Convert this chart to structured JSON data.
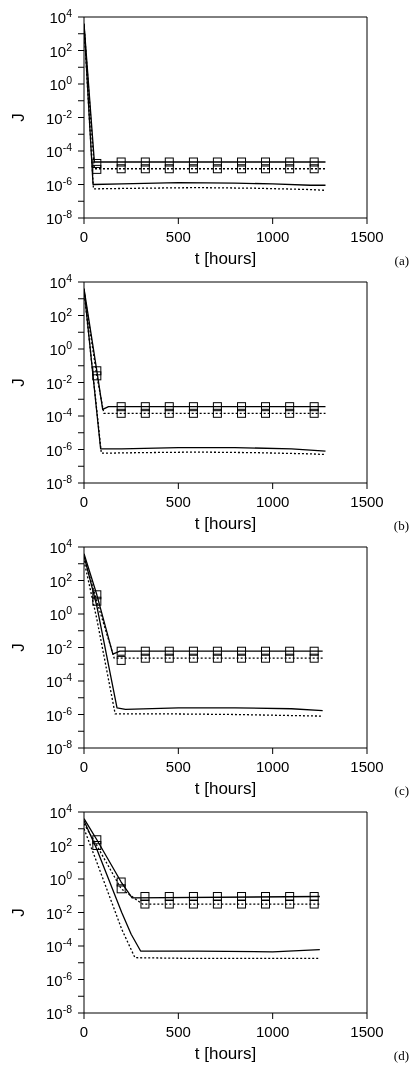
{
  "chart_data": [
    {
      "type": "line",
      "xlabel": "t [hours]",
      "ylabel": "J",
      "annotations": [
        "(a)"
      ],
      "log": "y",
      "xlim": [
        0,
        1500
      ],
      "xticks": [
        0,
        500,
        1000,
        1500
      ],
      "ylim": [
        1e-08,
        10000
      ],
      "yticks": [
        {
          "value": 10000,
          "label": "10$^{4}$"
        },
        {
          "value": 1000,
          "label": null
        },
        {
          "value": 100,
          "label": "10$^{2}$"
        },
        {
          "value": 10,
          "label": null
        },
        {
          "value": 1,
          "label": "10$^{0}$"
        },
        {
          "value": 0.1,
          "label": null
        },
        {
          "value": 0.01,
          "label": "10$^{-2}$"
        },
        {
          "value": 0.001,
          "label": null
        },
        {
          "value": 0.0001,
          "label": "10$^{-4}$"
        },
        {
          "value": 1e-05,
          "label": null
        },
        {
          "value": 1e-06,
          "label": "10$^{-6}$"
        },
        {
          "value": 1e-07,
          "label": null
        },
        {
          "value": 1e-08,
          "label": "10$^{-8}$"
        }
      ],
      "series": [
        {
          "type": "line",
          "color": "#000000",
          "line_style": "solid",
          "marker": "none",
          "x": [
            0,
            55,
            1280
          ],
          "values": [
            4000,
            2.2e-05,
            2.2e-05
          ]
        },
        {
          "type": "line",
          "color": "#000000",
          "line_style": "dotted",
          "marker": "none",
          "x": [
            0,
            55,
            1280
          ],
          "values": [
            3000,
            8.7e-06,
            8.7e-06
          ]
        },
        {
          "type": "line",
          "color": "#000000",
          "line_style": "solid",
          "marker": "none",
          "x": [
            0,
            48,
            200,
            500,
            800,
            1000,
            1200,
            1280
          ],
          "values": [
            4000,
            1e-06,
            1.1e-06,
            1.3e-06,
            1.2e-06,
            1.1e-06,
            9e-07,
            9e-07
          ]
        },
        {
          "type": "line",
          "color": "#000000",
          "line_style": "dotted",
          "marker": "none",
          "x": [
            0,
            50,
            300,
            600,
            900,
            1200,
            1280
          ],
          "values": [
            3000,
            5.5e-07,
            6e-07,
            6.5e-07,
            6e-07,
            5e-07,
            4.5e-07
          ]
        },
        {
          "type": "scatter",
          "color": "#000000",
          "marker": "square",
          "x": [
            68,
            197,
            325,
            452,
            580,
            707,
            835,
            962,
            1090,
            1220
          ],
          "values": [
            1.8e-05,
            2.2e-05,
            2.2e-05,
            2.2e-05,
            2.2e-05,
            2.2e-05,
            2.2e-05,
            2.2e-05,
            2.2e-05,
            2.2e-05
          ]
        },
        {
          "type": "scatter",
          "color": "#000000",
          "marker": "square",
          "x": [
            68,
            197,
            325,
            452,
            580,
            707,
            835,
            962,
            1090,
            1220
          ],
          "values": [
            8e-06,
            8.7e-06,
            8.7e-06,
            8.7e-06,
            8.7e-06,
            8.7e-06,
            8.7e-06,
            8.7e-06,
            8.7e-06,
            8.7e-06
          ]
        }
      ]
    },
    {
      "type": "line",
      "xlabel": "t [hours]",
      "ylabel": "J",
      "annotations": [
        "(b)"
      ],
      "log": "y",
      "xlim": [
        0,
        1500
      ],
      "xticks": [
        0,
        500,
        1000,
        1500
      ],
      "ylim": [
        1e-08,
        10000
      ],
      "yticks": [
        {
          "value": 10000,
          "label": "10$^{4}$"
        },
        {
          "value": 1000,
          "label": null
        },
        {
          "value": 100,
          "label": "10$^{2}$"
        },
        {
          "value": 10,
          "label": null
        },
        {
          "value": 1,
          "label": "10$^{0}$"
        },
        {
          "value": 0.1,
          "label": null
        },
        {
          "value": 0.01,
          "label": "10$^{-2}$"
        },
        {
          "value": 0.001,
          "label": null
        },
        {
          "value": 0.0001,
          "label": "10$^{-4}$"
        },
        {
          "value": 1e-05,
          "label": null
        },
        {
          "value": 1e-06,
          "label": "10$^{-6}$"
        },
        {
          "value": 1e-07,
          "label": null
        },
        {
          "value": 1e-08,
          "label": "10$^{-8}$"
        }
      ],
      "series": [
        {
          "type": "line",
          "color": "#000000",
          "line_style": "solid",
          "marker": "none",
          "x": [
            0,
            68,
            99,
            130,
            1280
          ],
          "values": [
            4000,
            0.05,
            0.00025,
            0.00036,
            0.00036
          ]
        },
        {
          "type": "line",
          "color": "#000000",
          "line_style": "dotted",
          "marker": "none",
          "x": [
            0,
            68,
            105,
            1280
          ],
          "values": [
            3000,
            0.025,
            0.000145,
            0.000145
          ]
        },
        {
          "type": "line",
          "color": "#000000",
          "line_style": "solid",
          "marker": "none",
          "x": [
            0,
            88,
            200,
            500,
            800,
            1100,
            1280
          ],
          "values": [
            4000,
            1.1e-06,
            1.1e-06,
            1.3e-06,
            1.3e-06,
            1.1e-06,
            8e-07
          ]
        },
        {
          "type": "line",
          "color": "#000000",
          "line_style": "dotted",
          "marker": "none",
          "x": [
            0,
            92,
            300,
            600,
            900,
            1200,
            1280
          ],
          "values": [
            3000,
            6e-07,
            6.5e-07,
            7e-07,
            6.5e-07,
            5.5e-07,
            5e-07
          ]
        },
        {
          "type": "scatter",
          "color": "#000000",
          "marker": "square",
          "x": [
            68,
            197,
            325,
            452,
            580,
            707,
            835,
            962,
            1090,
            1220
          ],
          "values": [
            0.05,
            0.00036,
            0.00036,
            0.00036,
            0.00036,
            0.00036,
            0.00036,
            0.00036,
            0.00036,
            0.00036
          ]
        },
        {
          "type": "scatter",
          "color": "#000000",
          "marker": "square",
          "x": [
            68,
            197,
            325,
            452,
            580,
            707,
            835,
            962,
            1090,
            1220
          ],
          "values": [
            0.025,
            0.000145,
            0.000145,
            0.000145,
            0.000145,
            0.000145,
            0.000145,
            0.000145,
            0.000145,
            0.000145
          ]
        }
      ]
    },
    {
      "type": "line",
      "xlabel": "t [hours]",
      "ylabel": "J",
      "annotations": [
        "(c)"
      ],
      "log": "y",
      "xlim": [
        0,
        1500
      ],
      "xticks": [
        0,
        500,
        1000,
        1500
      ],
      "ylim": [
        1e-08,
        10000
      ],
      "yticks": [
        {
          "value": 10000,
          "label": "10$^{4}$"
        },
        {
          "value": 1000,
          "label": null
        },
        {
          "value": 100,
          "label": "10$^{2}$"
        },
        {
          "value": 10,
          "label": null
        },
        {
          "value": 1,
          "label": "10$^{0}$"
        },
        {
          "value": 0.1,
          "label": null
        },
        {
          "value": 0.01,
          "label": "10$^{-2}$"
        },
        {
          "value": 0.001,
          "label": null
        },
        {
          "value": 0.0001,
          "label": "10$^{-4}$"
        },
        {
          "value": 1e-05,
          "label": null
        },
        {
          "value": 1e-06,
          "label": "10$^{-6}$"
        },
        {
          "value": 1e-07,
          "label": null
        },
        {
          "value": 1e-08,
          "label": "10$^{-8}$"
        }
      ],
      "series": [
        {
          "type": "line",
          "color": "#000000",
          "line_style": "solid",
          "marker": "none",
          "x": [
            0,
            68,
            153,
            190,
            1265
          ],
          "values": [
            4000,
            14,
            0.004,
            0.006,
            0.006
          ]
        },
        {
          "type": "line",
          "color": "#000000",
          "line_style": "dotted",
          "marker": "none",
          "x": [
            0,
            68,
            160,
            1265
          ],
          "values": [
            2500,
            5.8,
            0.0023,
            0.0023
          ]
        },
        {
          "type": "line",
          "color": "#000000",
          "line_style": "solid",
          "marker": "none",
          "x": [
            0,
            68,
            175,
            220,
            500,
            800,
            1100,
            1265
          ],
          "values": [
            3000,
            3,
            2.5e-06,
            2e-06,
            2.5e-06,
            2.5e-06,
            2.2e-06,
            1.7e-06
          ]
        },
        {
          "type": "line",
          "color": "#000000",
          "line_style": "dotted",
          "marker": "none",
          "x": [
            0,
            68,
            165,
            400,
            800,
            1265
          ],
          "values": [
            1500,
            0.5,
            1.1e-06,
            1.1e-06,
            1e-06,
            8e-07
          ]
        },
        {
          "type": "scatter",
          "color": "#000000",
          "marker": "square",
          "x": [
            68,
            197,
            325,
            452,
            580,
            707,
            835,
            962,
            1090,
            1220
          ],
          "values": [
            14,
            0.006,
            0.006,
            0.006,
            0.006,
            0.006,
            0.006,
            0.006,
            0.006,
            0.006
          ]
        },
        {
          "type": "scatter",
          "color": "#000000",
          "marker": "square",
          "x": [
            68,
            197,
            325,
            452,
            580,
            707,
            835,
            962,
            1090,
            1220
          ],
          "values": [
            5.8,
            0.0017,
            0.0023,
            0.0023,
            0.0023,
            0.0023,
            0.0023,
            0.0023,
            0.0023,
            0.0023
          ]
        }
      ]
    },
    {
      "type": "line",
      "xlabel": "t [hours]",
      "ylabel": "J",
      "annotations": [
        "(d)"
      ],
      "log": "y",
      "xlim": [
        0,
        1500
      ],
      "xticks": [
        0,
        500,
        1000,
        1500
      ],
      "ylim": [
        1e-08,
        10000
      ],
      "yticks": [
        {
          "value": 10000,
          "label": "10$^{4}$"
        },
        {
          "value": 1000,
          "label": null
        },
        {
          "value": 100,
          "label": "10$^{2}$"
        },
        {
          "value": 10,
          "label": null
        },
        {
          "value": 1,
          "label": "10$^{0}$"
        },
        {
          "value": 0.1,
          "label": null
        },
        {
          "value": 0.01,
          "label": "10$^{-2}$"
        },
        {
          "value": 0.001,
          "label": null
        },
        {
          "value": 0.0001,
          "label": "10$^{-4}$"
        },
        {
          "value": 1e-05,
          "label": null
        },
        {
          "value": 1e-06,
          "label": "10$^{-6}$"
        },
        {
          "value": 1e-07,
          "label": null
        },
        {
          "value": 1e-08,
          "label": "10$^{-8}$"
        }
      ],
      "series": [
        {
          "type": "line",
          "color": "#000000",
          "line_style": "solid",
          "marker": "none",
          "x": [
            0,
            68,
            197,
            255,
            1250
          ],
          "values": [
            4000,
            220,
            0.66,
            0.074,
            0.09
          ]
        },
        {
          "type": "line",
          "color": "#000000",
          "line_style": "dotted",
          "marker": "none",
          "x": [
            0,
            68,
            197,
            310,
            1250
          ],
          "values": [
            2000,
            100,
            0.26,
            0.032,
            0.032
          ]
        },
        {
          "type": "line",
          "color": "#000000",
          "line_style": "solid",
          "marker": "none",
          "x": [
            0,
            68,
            200,
            250,
            300,
            600,
            1000,
            1250
          ],
          "values": [
            3000,
            60,
            0.01,
            0.0005,
            5e-05,
            5e-05,
            4.5e-05,
            6e-05
          ]
        },
        {
          "type": "line",
          "color": "#000000",
          "line_style": "dotted",
          "marker": "none",
          "x": [
            0,
            68,
            200,
            270,
            600,
            1000,
            1250
          ],
          "values": [
            1000,
            10,
            0.001,
            2e-05,
            1.8e-05,
            1.8e-05,
            1.8e-05
          ]
        },
        {
          "type": "scatter",
          "color": "#000000",
          "marker": "square",
          "x": [
            68,
            197,
            323,
            452,
            580,
            707,
            835,
            962,
            1090,
            1220
          ],
          "values": [
            220,
            0.66,
            0.09,
            0.09,
            0.09,
            0.09,
            0.09,
            0.09,
            0.09,
            0.09
          ]
        },
        {
          "type": "scatter",
          "color": "#000000",
          "marker": "square",
          "x": [
            68,
            197,
            323,
            452,
            580,
            707,
            835,
            962,
            1090,
            1220
          ],
          "values": [
            100,
            0.26,
            0.032,
            0.032,
            0.032,
            0.032,
            0.032,
            0.032,
            0.032,
            0.032
          ]
        }
      ]
    }
  ]
}
